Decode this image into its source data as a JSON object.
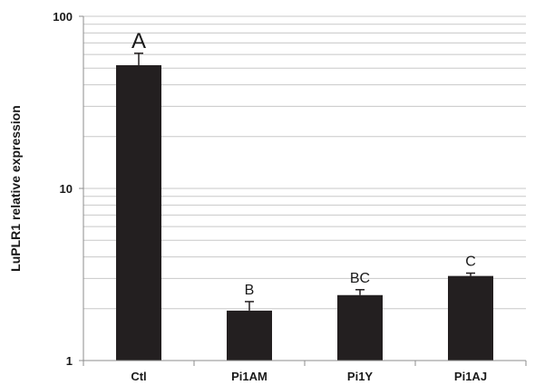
{
  "chart_data": {
    "type": "bar",
    "ylabel": "LuPLR1 relative expression",
    "xlabel": "",
    "yscale": "log",
    "ylim": [
      1,
      100
    ],
    "yticks": [
      "1",
      "10",
      "100"
    ],
    "categories": [
      "Ctl",
      "Pi1AM",
      "Pi1Y",
      "Pi1AJ"
    ],
    "values": [
      52,
      1.95,
      2.4,
      3.1
    ],
    "error_upper": [
      61,
      2.2,
      2.58,
      3.22
    ],
    "significance_letters": [
      "A",
      "B",
      "BC",
      "C"
    ],
    "minor_gridlines": true,
    "legend": "none",
    "colors": {
      "bar": "#231f20",
      "grid": "#c8c8c8",
      "axis": "#8c8c8c",
      "error": "#231f20"
    }
  }
}
